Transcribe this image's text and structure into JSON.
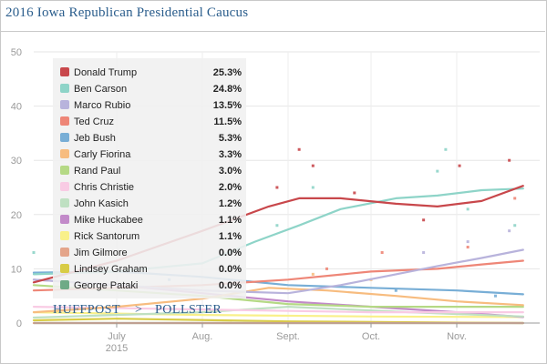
{
  "chart_data": {
    "type": "line",
    "title": "2016 Iowa Republican Presidential Caucus",
    "xlabel": "",
    "ylabel": "",
    "ylim": [
      0,
      50
    ],
    "yticks": [
      0,
      10,
      20,
      30,
      40,
      50
    ],
    "xrange": [
      "2015-06-01",
      "2015-12-01"
    ],
    "xticks": [
      {
        "date": "2015-07-01",
        "label": "July",
        "sublabel": "2015"
      },
      {
        "date": "2015-08-01",
        "label": "Aug.",
        "sublabel": ""
      },
      {
        "date": "2015-09-01",
        "label": "Sept.",
        "sublabel": ""
      },
      {
        "date": "2015-10-01",
        "label": "Oct.",
        "sublabel": ""
      },
      {
        "date": "2015-11-01",
        "label": "Nov.",
        "sublabel": ""
      }
    ],
    "grid": true,
    "legend_position": "top-left",
    "brand": {
      "left": "HUFFPOST",
      "sep": ">",
      "right": "POLLSTER"
    },
    "series": [
      {
        "name": "Donald Trump",
        "latest": "25.3%",
        "color": "#c8474b",
        "x": [
          "2015-06-01",
          "2015-07-01",
          "2015-08-01",
          "2015-08-25",
          "2015-09-05",
          "2015-09-20",
          "2015-10-10",
          "2015-10-25",
          "2015-11-10",
          "2015-11-25"
        ],
        "y": [
          7.5,
          11.5,
          17.0,
          21.5,
          23.0,
          23.0,
          22.0,
          21.5,
          22.5,
          25.3
        ],
        "dots_x": [
          "2015-08-28",
          "2015-09-05",
          "2015-09-10",
          "2015-09-25",
          "2015-10-20",
          "2015-11-02",
          "2015-11-20"
        ],
        "dots_y": [
          25,
          32,
          29,
          24,
          19,
          29,
          30
        ]
      },
      {
        "name": "Ben Carson",
        "latest": "24.8%",
        "color": "#8ed4c8",
        "x": [
          "2015-06-01",
          "2015-07-01",
          "2015-08-01",
          "2015-08-20",
          "2015-09-05",
          "2015-09-20",
          "2015-10-10",
          "2015-10-25",
          "2015-11-10",
          "2015-11-25"
        ],
        "y": [
          9.0,
          9.5,
          11.0,
          15.0,
          18.0,
          21.0,
          23.0,
          23.5,
          24.5,
          24.8
        ],
        "dots_x": [
          "2015-06-01",
          "2015-08-28",
          "2015-09-10",
          "2015-10-25",
          "2015-10-28",
          "2015-11-05",
          "2015-11-22"
        ],
        "dots_y": [
          13,
          18,
          25,
          28,
          32,
          21,
          18
        ]
      },
      {
        "name": "Marco Rubio",
        "latest": "13.5%",
        "color": "#b8b3dc",
        "x": [
          "2015-06-01",
          "2015-07-01",
          "2015-08-01",
          "2015-09-01",
          "2015-09-20",
          "2015-10-10",
          "2015-10-25",
          "2015-11-10",
          "2015-11-25"
        ],
        "y": [
          8.0,
          7.0,
          6.0,
          5.5,
          7.0,
          9.0,
          10.5,
          12.0,
          13.5
        ],
        "dots_x": [
          "2015-10-20",
          "2015-11-05",
          "2015-11-20"
        ],
        "dots_y": [
          13,
          15,
          17
        ]
      },
      {
        "name": "Ted Cruz",
        "latest": "11.5%",
        "color": "#ee8677",
        "x": [
          "2015-06-01",
          "2015-07-01",
          "2015-08-01",
          "2015-09-01",
          "2015-10-01",
          "2015-10-25",
          "2015-11-10",
          "2015-11-25"
        ],
        "y": [
          6.0,
          6.5,
          7.0,
          8.0,
          9.5,
          10.0,
          10.8,
          11.5
        ],
        "dots_x": [
          "2015-09-15",
          "2015-10-05",
          "2015-11-05",
          "2015-11-22"
        ],
        "dots_y": [
          10,
          13,
          14,
          23
        ]
      },
      {
        "name": "Jeb Bush",
        "latest": "5.3%",
        "color": "#78aed6",
        "x": [
          "2015-06-01",
          "2015-07-01",
          "2015-08-01",
          "2015-09-01",
          "2015-10-01",
          "2015-11-01",
          "2015-11-25"
        ],
        "y": [
          9.3,
          9.5,
          8.5,
          7.0,
          6.5,
          6.0,
          5.3
        ],
        "dots_x": [
          "2015-07-20",
          "2015-10-10",
          "2015-11-15"
        ],
        "dots_y": [
          8,
          6,
          5
        ]
      },
      {
        "name": "Carly Fiorina",
        "latest": "3.3%",
        "color": "#f7bc7f",
        "x": [
          "2015-06-01",
          "2015-07-01",
          "2015-08-01",
          "2015-08-25",
          "2015-09-15",
          "2015-10-10",
          "2015-11-01",
          "2015-11-25"
        ],
        "y": [
          2.0,
          3.0,
          4.5,
          6.5,
          6.0,
          5.0,
          4.0,
          3.3
        ],
        "dots_x": [
          "2015-09-10",
          "2015-10-01"
        ],
        "dots_y": [
          9,
          8
        ]
      },
      {
        "name": "Rand Paul",
        "latest": "3.0%",
        "color": "#b5d985",
        "x": [
          "2015-06-01",
          "2015-07-01",
          "2015-08-01",
          "2015-09-01",
          "2015-10-01",
          "2015-11-01",
          "2015-11-25"
        ],
        "y": [
          7.0,
          6.0,
          5.0,
          3.5,
          3.0,
          3.0,
          3.0
        ],
        "dots_x": [],
        "dots_y": []
      },
      {
        "name": "Chris Christie",
        "latest": "2.0%",
        "color": "#f9cbe4",
        "x": [
          "2015-06-01",
          "2015-08-01",
          "2015-10-01",
          "2015-11-25"
        ],
        "y": [
          3.0,
          2.5,
          2.0,
          2.0
        ],
        "dots_x": [],
        "dots_y": []
      },
      {
        "name": "John Kasich",
        "latest": "1.2%",
        "color": "#bfe0c2",
        "x": [
          "2015-06-01",
          "2015-08-01",
          "2015-09-01",
          "2015-10-15",
          "2015-11-25"
        ],
        "y": [
          1.0,
          2.0,
          3.0,
          2.0,
          1.2
        ],
        "dots_x": [],
        "dots_y": []
      },
      {
        "name": "Mike Huckabee",
        "latest": "1.1%",
        "color": "#c28ac9",
        "x": [
          "2015-06-01",
          "2015-07-01",
          "2015-08-01",
          "2015-09-01",
          "2015-10-01",
          "2015-11-01",
          "2015-11-25"
        ],
        "y": [
          8.0,
          7.0,
          5.5,
          4.0,
          3.0,
          2.0,
          1.1
        ],
        "dots_x": [],
        "dots_y": []
      },
      {
        "name": "Rick Santorum",
        "latest": "1.1%",
        "color": "#f9f08a",
        "x": [
          "2015-06-01",
          "2015-08-01",
          "2015-10-01",
          "2015-11-25"
        ],
        "y": [
          2.0,
          1.5,
          1.2,
          1.1
        ],
        "dots_x": [],
        "dots_y": []
      },
      {
        "name": "Jim Gilmore",
        "latest": "0.0%",
        "color": "#e4a58a",
        "x": [
          "2015-06-01",
          "2015-11-25"
        ],
        "y": [
          0.0,
          0.0
        ],
        "dots_x": [],
        "dots_y": []
      },
      {
        "name": "Lindsey Graham",
        "latest": "0.0%",
        "color": "#d8cc45",
        "x": [
          "2015-06-01",
          "2015-07-01",
          "2015-09-01",
          "2015-11-25"
        ],
        "y": [
          0.5,
          0.8,
          0.3,
          0.0
        ],
        "dots_x": [],
        "dots_y": []
      },
      {
        "name": "George Pataki",
        "latest": "0.0%",
        "color": "#6faa86",
        "x": [
          "2015-06-01",
          "2015-11-25"
        ],
        "y": [
          0.0,
          0.0
        ],
        "dots_x": [],
        "dots_y": []
      }
    ]
  }
}
